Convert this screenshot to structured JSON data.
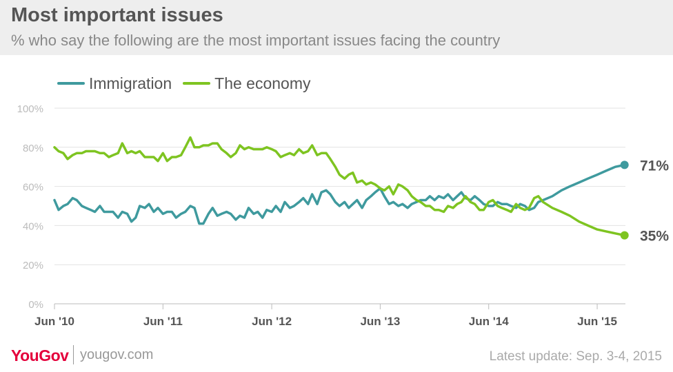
{
  "header": {
    "title": "Most important issues",
    "subtitle": "% who say the following are the most important issues facing the country"
  },
  "legend": {
    "items": [
      {
        "label": "Immigration",
        "color": "#3f9a9e"
      },
      {
        "label": "The economy",
        "color": "#7ec421"
      }
    ]
  },
  "footer": {
    "logo": "YouGov",
    "site": "yougov.com",
    "update": "Latest update: Sep. 3-4, 2015"
  },
  "chart_data": {
    "type": "line",
    "title": "Most important issues",
    "xlabel": "",
    "ylabel": "",
    "x_tick_labels": [
      "Jun '10",
      "Jun '11",
      "Jun '12",
      "Jun '13",
      "Jun '14",
      "Jun '15"
    ],
    "y_tick_labels": [
      "0%",
      "20%",
      "40%",
      "60%",
      "80%",
      "100%"
    ],
    "ylim": [
      0,
      100
    ],
    "x_range": [
      "2010-06",
      "2015-09"
    ],
    "grid": true,
    "legend_position": "top-left",
    "series": [
      {
        "name": "Immigration",
        "color": "#3f9a9e",
        "end_label": "71%",
        "points": [
          [
            "2010-06-01",
            53
          ],
          [
            "2010-06-15",
            48
          ],
          [
            "2010-07-01",
            50
          ],
          [
            "2010-07-15",
            51
          ],
          [
            "2010-08-01",
            54
          ],
          [
            "2010-08-15",
            53
          ],
          [
            "2010-09-01",
            50
          ],
          [
            "2010-09-15",
            49
          ],
          [
            "2010-10-01",
            48
          ],
          [
            "2010-10-15",
            47
          ],
          [
            "2010-11-01",
            50
          ],
          [
            "2010-11-15",
            47
          ],
          [
            "2010-12-01",
            47
          ],
          [
            "2010-12-15",
            47
          ],
          [
            "2011-01-01",
            44
          ],
          [
            "2011-01-15",
            47
          ],
          [
            "2011-02-01",
            46
          ],
          [
            "2011-02-15",
            42
          ],
          [
            "2011-03-01",
            44
          ],
          [
            "2011-03-15",
            50
          ],
          [
            "2011-04-01",
            49
          ],
          [
            "2011-04-15",
            51
          ],
          [
            "2011-05-01",
            47
          ],
          [
            "2011-05-15",
            49
          ],
          [
            "2011-06-01",
            46
          ],
          [
            "2011-06-15",
            47
          ],
          [
            "2011-07-01",
            47
          ],
          [
            "2011-07-15",
            44
          ],
          [
            "2011-08-01",
            46
          ],
          [
            "2011-08-15",
            47
          ],
          [
            "2011-09-01",
            50
          ],
          [
            "2011-09-15",
            49
          ],
          [
            "2011-10-01",
            41
          ],
          [
            "2011-10-15",
            41
          ],
          [
            "2011-11-01",
            46
          ],
          [
            "2011-11-15",
            49
          ],
          [
            "2011-12-01",
            45
          ],
          [
            "2011-12-15",
            46
          ],
          [
            "2012-01-01",
            47
          ],
          [
            "2012-01-15",
            46
          ],
          [
            "2012-02-01",
            43
          ],
          [
            "2012-02-15",
            45
          ],
          [
            "2012-03-01",
            44
          ],
          [
            "2012-03-15",
            49
          ],
          [
            "2012-04-01",
            46
          ],
          [
            "2012-04-15",
            47
          ],
          [
            "2012-05-01",
            44
          ],
          [
            "2012-05-15",
            48
          ],
          [
            "2012-06-01",
            47
          ],
          [
            "2012-06-15",
            50
          ],
          [
            "2012-07-01",
            47
          ],
          [
            "2012-07-15",
            52
          ],
          [
            "2012-08-01",
            49
          ],
          [
            "2012-08-15",
            50
          ],
          [
            "2012-09-01",
            52
          ],
          [
            "2012-09-15",
            54
          ],
          [
            "2012-10-01",
            51
          ],
          [
            "2012-10-15",
            56
          ],
          [
            "2012-11-01",
            51
          ],
          [
            "2012-11-15",
            57
          ],
          [
            "2012-12-01",
            58
          ],
          [
            "2012-12-15",
            56
          ],
          [
            "2013-01-01",
            52
          ],
          [
            "2013-01-15",
            50
          ],
          [
            "2013-02-01",
            52
          ],
          [
            "2013-02-15",
            49
          ],
          [
            "2013-03-01",
            51
          ],
          [
            "2013-03-15",
            53
          ],
          [
            "2013-04-01",
            49
          ],
          [
            "2013-04-15",
            53
          ],
          [
            "2013-05-01",
            55
          ],
          [
            "2013-05-15",
            57
          ],
          [
            "2013-06-01",
            59
          ],
          [
            "2013-06-15",
            55
          ],
          [
            "2013-07-01",
            51
          ],
          [
            "2013-07-15",
            52
          ],
          [
            "2013-08-01",
            50
          ],
          [
            "2013-08-15",
            51
          ],
          [
            "2013-09-01",
            49
          ],
          [
            "2013-09-15",
            51
          ],
          [
            "2013-10-01",
            52
          ],
          [
            "2013-10-15",
            53
          ],
          [
            "2013-11-01",
            53
          ],
          [
            "2013-11-15",
            55
          ],
          [
            "2013-12-01",
            53
          ],
          [
            "2013-12-15",
            55
          ],
          [
            "2014-01-01",
            54
          ],
          [
            "2014-01-15",
            56
          ],
          [
            "2014-02-01",
            53
          ],
          [
            "2014-02-15",
            55
          ],
          [
            "2014-03-01",
            57
          ],
          [
            "2014-03-15",
            54
          ],
          [
            "2014-04-01",
            53
          ],
          [
            "2014-04-15",
            55
          ],
          [
            "2014-05-01",
            53
          ],
          [
            "2014-05-15",
            51
          ],
          [
            "2014-06-01",
            50
          ],
          [
            "2014-06-15",
            50
          ],
          [
            "2014-07-01",
            52
          ],
          [
            "2014-07-15",
            51
          ],
          [
            "2014-08-01",
            51
          ],
          [
            "2014-08-15",
            50
          ],
          [
            "2014-09-01",
            49
          ],
          [
            "2014-09-15",
            51
          ],
          [
            "2014-10-01",
            50
          ],
          [
            "2014-10-15",
            48
          ],
          [
            "2014-11-01",
            49
          ],
          [
            "2014-11-15",
            52
          ],
          [
            "2014-12-01",
            53
          ],
          [
            "2015-01-01",
            55
          ],
          [
            "2015-02-01",
            58
          ],
          [
            "2015-03-01",
            60
          ],
          [
            "2015-04-01",
            62
          ],
          [
            "2015-05-01",
            64
          ],
          [
            "2015-06-01",
            66
          ],
          [
            "2015-07-01",
            68
          ],
          [
            "2015-08-01",
            70
          ],
          [
            "2015-09-01",
            71
          ]
        ]
      },
      {
        "name": "The economy",
        "color": "#7ec421",
        "end_label": "35%",
        "points": [
          [
            "2010-06-01",
            80
          ],
          [
            "2010-06-15",
            78
          ],
          [
            "2010-07-01",
            77
          ],
          [
            "2010-07-15",
            74
          ],
          [
            "2010-08-01",
            76
          ],
          [
            "2010-08-15",
            77
          ],
          [
            "2010-09-01",
            77
          ],
          [
            "2010-09-15",
            78
          ],
          [
            "2010-10-01",
            78
          ],
          [
            "2010-10-15",
            78
          ],
          [
            "2010-11-01",
            77
          ],
          [
            "2010-11-15",
            77
          ],
          [
            "2010-12-01",
            75
          ],
          [
            "2010-12-15",
            76
          ],
          [
            "2011-01-01",
            77
          ],
          [
            "2011-01-15",
            82
          ],
          [
            "2011-02-01",
            77
          ],
          [
            "2011-02-15",
            78
          ],
          [
            "2011-03-01",
            77
          ],
          [
            "2011-03-15",
            78
          ],
          [
            "2011-04-01",
            75
          ],
          [
            "2011-04-15",
            75
          ],
          [
            "2011-05-01",
            75
          ],
          [
            "2011-05-15",
            73
          ],
          [
            "2011-06-01",
            77
          ],
          [
            "2011-06-15",
            73
          ],
          [
            "2011-07-01",
            75
          ],
          [
            "2011-07-15",
            75
          ],
          [
            "2011-08-01",
            76
          ],
          [
            "2011-08-15",
            80
          ],
          [
            "2011-09-01",
            85
          ],
          [
            "2011-09-15",
            80
          ],
          [
            "2011-10-01",
            80
          ],
          [
            "2011-10-15",
            81
          ],
          [
            "2011-11-01",
            81
          ],
          [
            "2011-11-15",
            82
          ],
          [
            "2011-12-01",
            82
          ],
          [
            "2011-12-15",
            79
          ],
          [
            "2012-01-01",
            77
          ],
          [
            "2012-01-15",
            75
          ],
          [
            "2012-02-01",
            77
          ],
          [
            "2012-02-15",
            81
          ],
          [
            "2012-03-01",
            79
          ],
          [
            "2012-03-15",
            80
          ],
          [
            "2012-04-01",
            79
          ],
          [
            "2012-04-15",
            79
          ],
          [
            "2012-05-01",
            79
          ],
          [
            "2012-05-15",
            80
          ],
          [
            "2012-06-01",
            79
          ],
          [
            "2012-06-15",
            78
          ],
          [
            "2012-07-01",
            75
          ],
          [
            "2012-07-15",
            76
          ],
          [
            "2012-08-01",
            77
          ],
          [
            "2012-08-15",
            76
          ],
          [
            "2012-09-01",
            79
          ],
          [
            "2012-09-15",
            77
          ],
          [
            "2012-10-01",
            78
          ],
          [
            "2012-10-15",
            81
          ],
          [
            "2012-11-01",
            76
          ],
          [
            "2012-11-15",
            77
          ],
          [
            "2012-12-01",
            77
          ],
          [
            "2012-12-15",
            74
          ],
          [
            "2013-01-01",
            70
          ],
          [
            "2013-01-15",
            66
          ],
          [
            "2013-02-01",
            64
          ],
          [
            "2013-02-15",
            66
          ],
          [
            "2013-03-01",
            67
          ],
          [
            "2013-03-15",
            62
          ],
          [
            "2013-04-01",
            63
          ],
          [
            "2013-04-15",
            61
          ],
          [
            "2013-05-01",
            62
          ],
          [
            "2013-05-15",
            61
          ],
          [
            "2013-06-01",
            59
          ],
          [
            "2013-06-15",
            58
          ],
          [
            "2013-07-01",
            60
          ],
          [
            "2013-07-15",
            56
          ],
          [
            "2013-08-01",
            61
          ],
          [
            "2013-08-15",
            60
          ],
          [
            "2013-09-01",
            58
          ],
          [
            "2013-09-15",
            55
          ],
          [
            "2013-10-01",
            53
          ],
          [
            "2013-10-15",
            52
          ],
          [
            "2013-11-01",
            50
          ],
          [
            "2013-11-15",
            50
          ],
          [
            "2013-12-01",
            48
          ],
          [
            "2013-12-15",
            48
          ],
          [
            "2014-01-01",
            47
          ],
          [
            "2014-01-15",
            50
          ],
          [
            "2014-02-01",
            49
          ],
          [
            "2014-02-15",
            51
          ],
          [
            "2014-03-01",
            52
          ],
          [
            "2014-03-15",
            55
          ],
          [
            "2014-04-01",
            52
          ],
          [
            "2014-04-15",
            51
          ],
          [
            "2014-05-01",
            48
          ],
          [
            "2014-05-15",
            48
          ],
          [
            "2014-06-01",
            52
          ],
          [
            "2014-06-15",
            53
          ],
          [
            "2014-07-01",
            50
          ],
          [
            "2014-07-15",
            49
          ],
          [
            "2014-08-01",
            48
          ],
          [
            "2014-08-15",
            47
          ],
          [
            "2014-09-01",
            51
          ],
          [
            "2014-09-15",
            49
          ],
          [
            "2014-10-01",
            48
          ],
          [
            "2014-10-15",
            49
          ],
          [
            "2014-11-01",
            54
          ],
          [
            "2014-11-15",
            55
          ],
          [
            "2014-12-01",
            52
          ],
          [
            "2015-01-01",
            49
          ],
          [
            "2015-02-01",
            47
          ],
          [
            "2015-03-01",
            45
          ],
          [
            "2015-04-01",
            42
          ],
          [
            "2015-05-01",
            40
          ],
          [
            "2015-06-01",
            38
          ],
          [
            "2015-07-01",
            37
          ],
          [
            "2015-08-01",
            36
          ],
          [
            "2015-09-01",
            35
          ]
        ]
      }
    ]
  }
}
